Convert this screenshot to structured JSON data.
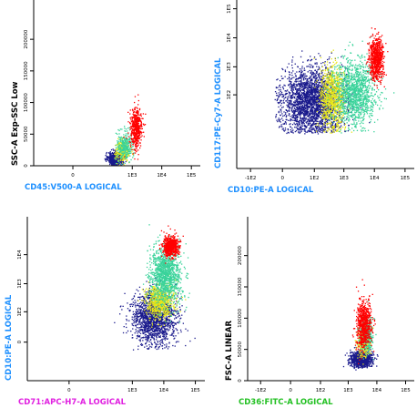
{
  "chart_data": [
    {
      "type": "scatter",
      "xlabel": "CD45:V500-A LOGICAL",
      "ylabel": "SSC-A Exp-SSC Low",
      "xlabel_color": "#1e90ff",
      "ylabel_color": "#000000",
      "xscale": "logical",
      "yscale": "linear",
      "xticks": [
        "0",
        "1E3",
        "1E4",
        "1E5"
      ],
      "xtick_vals": [
        0,
        1000,
        10000,
        100000
      ],
      "yticks": [
        "0",
        "50000",
        "100000",
        "150000",
        "200000"
      ],
      "ytick_vals": [
        0,
        50000,
        100000,
        150000,
        200000
      ],
      "xlim": [
        -200,
        200000
      ],
      "ylim": [
        0,
        262144
      ],
      "populations": [
        {
          "color": "#1a1a8c",
          "n": 700,
          "x": 250,
          "y": 12000,
          "sx": 0.12,
          "sy": 5000
        },
        {
          "color": "#e6e619",
          "n": 300,
          "x": 450,
          "y": 24000,
          "sx": 0.12,
          "sy": 8000
        },
        {
          "color": "#39d39a",
          "n": 300,
          "x": 550,
          "y": 32000,
          "sx": 0.14,
          "sy": 12000
        },
        {
          "color": "#ff0000",
          "n": 500,
          "x": 1300,
          "y": 60000,
          "sx": 0.1,
          "sy": 16000
        }
      ]
    },
    {
      "type": "scatter",
      "xlabel": "CD10:PE-A LOGICAL",
      "ylabel": "CD117:PE-Cy7-A LOGICAL",
      "xlabel_color": "#1e90ff",
      "ylabel_color": "#1e90ff",
      "xscale": "logical",
      "yscale": "logical",
      "xticks": [
        "-1E2",
        "0",
        "1E2",
        "1E3",
        "1E4",
        "1E5"
      ],
      "xtick_vals": [
        -100,
        0,
        100,
        1000,
        10000,
        100000
      ],
      "yticks": [
        "1E2",
        "1E3",
        "1E4",
        "1E5"
      ],
      "ytick_vals": [
        100,
        1000,
        10000,
        100000
      ],
      "xlim": [
        -300,
        200000
      ],
      "ylim": [
        -300,
        200000
      ],
      "populations": [
        {
          "color": "#1a1a8c",
          "n": 2600,
          "x": 80,
          "y": 60,
          "sx": 0.5,
          "sy": 0.55
        },
        {
          "color": "#e6e619",
          "n": 900,
          "x": 400,
          "y": 80,
          "sx": 0.2,
          "sy": 0.55
        },
        {
          "color": "#39d39a",
          "n": 1300,
          "x": 2200,
          "y": 120,
          "sx": 0.35,
          "sy": 0.55
        },
        {
          "color": "#ff0000",
          "n": 700,
          "x": 11000,
          "y": 2000,
          "sx": 0.12,
          "sy": 0.35
        }
      ]
    },
    {
      "type": "scatter",
      "xlabel": "CD71:APC-H7-A LOGICAL",
      "ylabel": "CD10:PE-A LOGICAL",
      "xlabel_color": "#e020e0",
      "ylabel_color": "#1e90ff",
      "xscale": "logical",
      "yscale": "logical",
      "xticks": [
        "0",
        "1E3",
        "1E4",
        "1E5"
      ],
      "xtick_vals": [
        0,
        1000,
        10000,
        100000
      ],
      "yticks": [
        "0",
        "1E2",
        "1E3",
        "1E4"
      ],
      "ytick_vals": [
        0,
        100,
        1000,
        10000
      ],
      "xlim": [
        -200,
        200000
      ],
      "ylim": [
        -200,
        200000
      ],
      "populations": [
        {
          "color": "#1a1a8c",
          "n": 1600,
          "x": 4500,
          "y": 60,
          "sx": 0.35,
          "sy": 0.45
        },
        {
          "color": "#e6e619",
          "n": 700,
          "x": 7000,
          "y": 250,
          "sx": 0.22,
          "sy": 0.3
        },
        {
          "color": "#39d39a",
          "n": 1200,
          "x": 11000,
          "y": 2000,
          "sx": 0.25,
          "sy": 0.5
        },
        {
          "color": "#ff0000",
          "n": 700,
          "x": 16000,
          "y": 20000,
          "sx": 0.12,
          "sy": 0.18
        }
      ]
    },
    {
      "type": "scatter",
      "xlabel": "CD36:FITC-A LOGICAL",
      "ylabel": "FSC-A LINEAR",
      "xlabel_color": "#22c022",
      "ylabel_color": "#000000",
      "xscale": "logical",
      "yscale": "linear",
      "xticks": [
        "-1E2",
        "0",
        "1E2",
        "1E3",
        "1E4",
        "1E5"
      ],
      "xtick_vals": [
        -100,
        0,
        100,
        1000,
        10000,
        100000
      ],
      "yticks": [
        "0",
        "50000",
        "100000",
        "150000",
        "200000"
      ],
      "ytick_vals": [
        0,
        50000,
        100000,
        150000,
        200000
      ],
      "xlim": [
        -300,
        200000
      ],
      "ylim": [
        0,
        262144
      ],
      "populations": [
        {
          "color": "#1a1a8c",
          "n": 1100,
          "x": 2700,
          "y": 35000,
          "sx": 0.18,
          "sy": 5500
        },
        {
          "color": "#e6e619",
          "n": 500,
          "x": 3400,
          "y": 65000,
          "sx": 0.1,
          "sy": 12000
        },
        {
          "color": "#39d39a",
          "n": 400,
          "x": 4000,
          "y": 75000,
          "sx": 0.12,
          "sy": 14000
        },
        {
          "color": "#ff0000",
          "n": 700,
          "x": 3300,
          "y": 90000,
          "sx": 0.13,
          "sy": 20000
        }
      ]
    }
  ]
}
